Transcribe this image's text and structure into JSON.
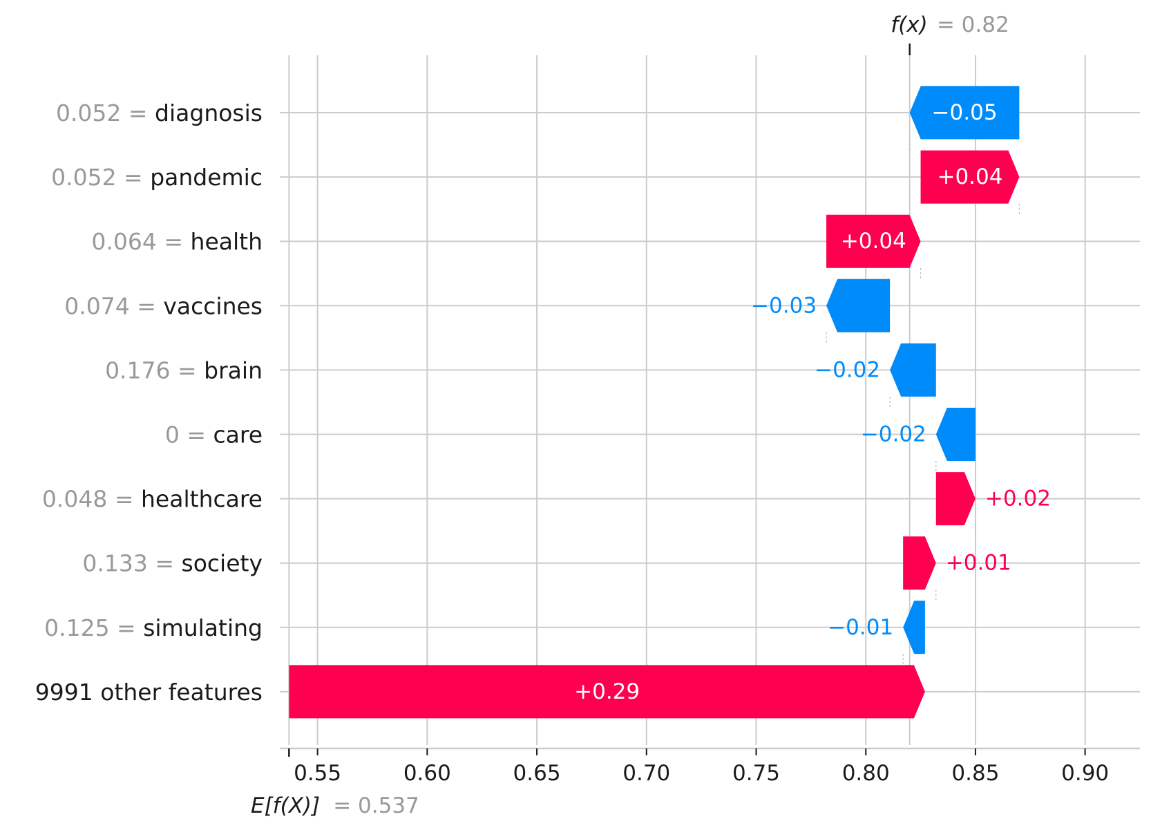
{
  "chart_data": {
    "type": "waterfall",
    "title": "",
    "xlabel": "",
    "ylabel": "",
    "xlim": [
      0.535,
      0.925
    ],
    "x_ticks": [
      0.55,
      0.6,
      0.65,
      0.7,
      0.75,
      0.8,
      0.85,
      0.9
    ],
    "x_tick_labels": [
      "0.55",
      "0.60",
      "0.65",
      "0.70",
      "0.75",
      "0.80",
      "0.85",
      "0.90"
    ],
    "grid": true,
    "base_value": 0.537,
    "base_label": "E[f(X)]",
    "base_value_text": "= 0.537",
    "output_value": 0.82,
    "output_label": "f(x)",
    "output_value_text": "= 0.82",
    "colors": {
      "positive": "#ff0051",
      "negative": "#008bfb",
      "grid": "#cccccc",
      "axis": "#1a1a1a",
      "value_text": "#999999"
    },
    "features": [
      {
        "value_text": "0.052",
        "name": "diagnosis",
        "start": 0.87,
        "end": 0.82,
        "label": "−0.05"
      },
      {
        "value_text": "0.052",
        "name": "pandemic",
        "start": 0.825,
        "end": 0.87,
        "label": "+0.04"
      },
      {
        "value_text": "0.064",
        "name": "health",
        "start": 0.782,
        "end": 0.825,
        "label": "+0.04"
      },
      {
        "value_text": "0.074",
        "name": "vaccines",
        "start": 0.811,
        "end": 0.782,
        "label": "−0.03"
      },
      {
        "value_text": "0.176",
        "name": "brain",
        "start": 0.832,
        "end": 0.811,
        "label": "−0.02"
      },
      {
        "value_text": "0",
        "name": "care",
        "start": 0.85,
        "end": 0.832,
        "label": "−0.02"
      },
      {
        "value_text": "0.048",
        "name": "healthcare",
        "start": 0.832,
        "end": 0.85,
        "label": "+0.02"
      },
      {
        "value_text": "0.133",
        "name": "society",
        "start": 0.817,
        "end": 0.832,
        "label": "+0.01"
      },
      {
        "value_text": "0.125",
        "name": "simulating",
        "start": 0.827,
        "end": 0.817,
        "label": "−0.01"
      },
      {
        "value_text": "",
        "name": "9991 other features",
        "start": 0.537,
        "end": 0.827,
        "label": "+0.29"
      }
    ]
  }
}
